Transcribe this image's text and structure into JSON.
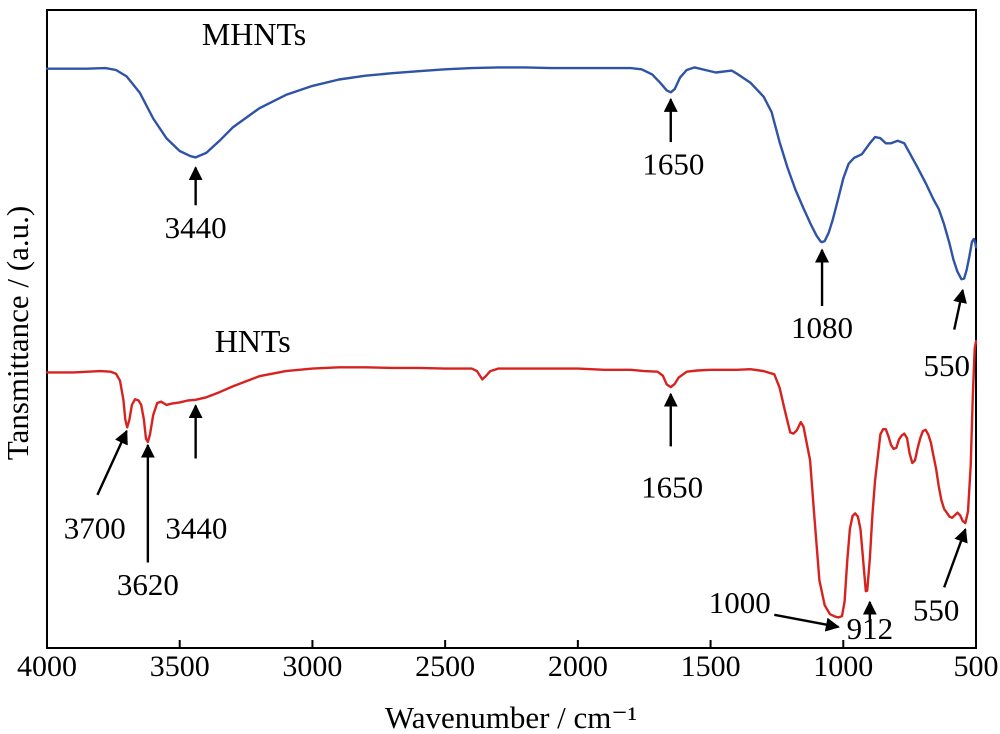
{
  "chart_data": {
    "type": "line",
    "xlabel": "Wavenumber / cm⁻¹",
    "ylabel": "Tansmittance / (a.u.)",
    "xlim": [
      4000,
      500
    ],
    "x_reversed": true,
    "xticks": [
      4000,
      3500,
      3000,
      2500,
      2000,
      1500,
      1000,
      500
    ],
    "ylim": [
      0,
      100
    ],
    "y_ticks_shown": false,
    "grid": false,
    "legend": "none",
    "series": [
      {
        "name": "MHNTs",
        "color": "#2f53a5",
        "points": [
          [
            4000,
            90.8
          ],
          [
            3850,
            90.8
          ],
          [
            3780,
            90.9
          ],
          [
            3740,
            90.6
          ],
          [
            3700,
            89.6
          ],
          [
            3650,
            87.0
          ],
          [
            3600,
            83.0
          ],
          [
            3550,
            79.9
          ],
          [
            3500,
            77.9
          ],
          [
            3460,
            77.1
          ],
          [
            3440,
            76.9
          ],
          [
            3400,
            77.6
          ],
          [
            3350,
            79.5
          ],
          [
            3300,
            81.6
          ],
          [
            3200,
            84.6
          ],
          [
            3100,
            86.7
          ],
          [
            3000,
            88.1
          ],
          [
            2900,
            89.1
          ],
          [
            2800,
            89.7
          ],
          [
            2700,
            90.1
          ],
          [
            2600,
            90.4
          ],
          [
            2500,
            90.7
          ],
          [
            2400,
            90.9
          ],
          [
            2300,
            91.0
          ],
          [
            2200,
            91.0
          ],
          [
            2100,
            90.9
          ],
          [
            2000,
            90.9
          ],
          [
            1900,
            90.9
          ],
          [
            1800,
            90.9
          ],
          [
            1760,
            90.7
          ],
          [
            1720,
            89.9
          ],
          [
            1690,
            88.6
          ],
          [
            1665,
            87.4
          ],
          [
            1650,
            87.1
          ],
          [
            1635,
            87.6
          ],
          [
            1615,
            89.4
          ],
          [
            1590,
            90.6
          ],
          [
            1560,
            91.0
          ],
          [
            1520,
            90.6
          ],
          [
            1480,
            90.2
          ],
          [
            1440,
            90.4
          ],
          [
            1420,
            90.5
          ],
          [
            1400,
            90.0
          ],
          [
            1350,
            88.6
          ],
          [
            1300,
            86.4
          ],
          [
            1270,
            84.0
          ],
          [
            1240,
            79.3
          ],
          [
            1210,
            75.3
          ],
          [
            1180,
            71.8
          ],
          [
            1150,
            68.9
          ],
          [
            1120,
            66.2
          ],
          [
            1100,
            64.6
          ],
          [
            1085,
            63.7
          ],
          [
            1080,
            63.6
          ],
          [
            1070,
            63.8
          ],
          [
            1055,
            65.1
          ],
          [
            1040,
            67.1
          ],
          [
            1020,
            70.3
          ],
          [
            1000,
            73.6
          ],
          [
            980,
            75.9
          ],
          [
            960,
            76.8
          ],
          [
            930,
            77.4
          ],
          [
            900,
            79.1
          ],
          [
            880,
            80.1
          ],
          [
            860,
            79.9
          ],
          [
            840,
            79.1
          ],
          [
            820,
            79.1
          ],
          [
            795,
            79.5
          ],
          [
            770,
            79.1
          ],
          [
            750,
            77.6
          ],
          [
            720,
            75.3
          ],
          [
            690,
            72.9
          ],
          [
            660,
            70.3
          ],
          [
            640,
            68.8
          ],
          [
            620,
            66.4
          ],
          [
            600,
            63.4
          ],
          [
            585,
            60.9
          ],
          [
            570,
            59.0
          ],
          [
            555,
            57.8
          ],
          [
            545,
            57.9
          ],
          [
            535,
            59.3
          ],
          [
            525,
            61.4
          ],
          [
            515,
            63.7
          ],
          [
            508,
            64.1
          ],
          [
            502,
            63.4
          ],
          [
            500,
            62.8
          ]
        ]
      },
      {
        "name": "HNTs",
        "color": "#d7231f",
        "points": [
          [
            4000,
            43.2
          ],
          [
            3900,
            43.2
          ],
          [
            3800,
            43.4
          ],
          [
            3760,
            43.3
          ],
          [
            3740,
            43.0
          ],
          [
            3725,
            41.9
          ],
          [
            3712,
            38.9
          ],
          [
            3705,
            35.8
          ],
          [
            3698,
            34.6
          ],
          [
            3690,
            35.7
          ],
          [
            3680,
            38.1
          ],
          [
            3668,
            39.0
          ],
          [
            3655,
            38.8
          ],
          [
            3645,
            38.1
          ],
          [
            3635,
            35.8
          ],
          [
            3627,
            32.8
          ],
          [
            3620,
            32.3
          ],
          [
            3612,
            33.5
          ],
          [
            3600,
            36.5
          ],
          [
            3585,
            38.4
          ],
          [
            3570,
            38.6
          ],
          [
            3550,
            38.1
          ],
          [
            3530,
            38.3
          ],
          [
            3500,
            38.5
          ],
          [
            3470,
            38.8
          ],
          [
            3440,
            38.9
          ],
          [
            3400,
            39.3
          ],
          [
            3350,
            40.1
          ],
          [
            3300,
            41.0
          ],
          [
            3250,
            41.8
          ],
          [
            3200,
            42.6
          ],
          [
            3100,
            43.4
          ],
          [
            3000,
            43.8
          ],
          [
            2900,
            44.0
          ],
          [
            2800,
            44.0
          ],
          [
            2700,
            43.9
          ],
          [
            2600,
            43.9
          ],
          [
            2500,
            43.8
          ],
          [
            2400,
            43.8
          ],
          [
            2380,
            43.4
          ],
          [
            2360,
            42.1
          ],
          [
            2345,
            42.7
          ],
          [
            2330,
            43.4
          ],
          [
            2300,
            43.8
          ],
          [
            2200,
            43.8
          ],
          [
            2100,
            43.8
          ],
          [
            2000,
            43.8
          ],
          [
            1900,
            43.6
          ],
          [
            1800,
            43.6
          ],
          [
            1750,
            43.4
          ],
          [
            1700,
            43.3
          ],
          [
            1680,
            42.7
          ],
          [
            1665,
            41.3
          ],
          [
            1650,
            40.9
          ],
          [
            1635,
            41.4
          ],
          [
            1620,
            42.4
          ],
          [
            1590,
            43.3
          ],
          [
            1550,
            43.5
          ],
          [
            1500,
            43.6
          ],
          [
            1450,
            43.6
          ],
          [
            1400,
            43.6
          ],
          [
            1350,
            43.7
          ],
          [
            1300,
            43.4
          ],
          [
            1260,
            42.9
          ],
          [
            1240,
            40.8
          ],
          [
            1220,
            37.2
          ],
          [
            1200,
            33.8
          ],
          [
            1188,
            33.6
          ],
          [
            1175,
            34.1
          ],
          [
            1160,
            35.4
          ],
          [
            1150,
            34.7
          ],
          [
            1140,
            32.6
          ],
          [
            1125,
            29.4
          ],
          [
            1110,
            21.1
          ],
          [
            1090,
            10.6
          ],
          [
            1070,
            6.7
          ],
          [
            1050,
            5.3
          ],
          [
            1030,
            4.9
          ],
          [
            1018,
            4.8
          ],
          [
            1005,
            5.0
          ],
          [
            995,
            7.3
          ],
          [
            985,
            13.8
          ],
          [
            975,
            18.7
          ],
          [
            965,
            20.7
          ],
          [
            955,
            21.1
          ],
          [
            945,
            20.6
          ],
          [
            935,
            18.6
          ],
          [
            925,
            13.7
          ],
          [
            915,
            8.9
          ],
          [
            910,
            9.0
          ],
          [
            900,
            13.9
          ],
          [
            890,
            21.1
          ],
          [
            880,
            26.3
          ],
          [
            870,
            30.0
          ],
          [
            860,
            33.5
          ],
          [
            850,
            34.3
          ],
          [
            840,
            34.3
          ],
          [
            830,
            33.2
          ],
          [
            820,
            31.8
          ],
          [
            810,
            31.2
          ],
          [
            800,
            31.4
          ],
          [
            790,
            32.7
          ],
          [
            780,
            33.3
          ],
          [
            770,
            33.6
          ],
          [
            760,
            32.9
          ],
          [
            750,
            30.5
          ],
          [
            740,
            29.0
          ],
          [
            730,
            29.4
          ],
          [
            720,
            31.3
          ],
          [
            710,
            32.9
          ],
          [
            700,
            34.0
          ],
          [
            690,
            34.2
          ],
          [
            680,
            33.5
          ],
          [
            670,
            32.2
          ],
          [
            660,
            30.1
          ],
          [
            650,
            28.0
          ],
          [
            640,
            25.3
          ],
          [
            630,
            23.1
          ],
          [
            620,
            21.8
          ],
          [
            610,
            21.2
          ],
          [
            600,
            20.6
          ],
          [
            590,
            20.4
          ],
          [
            580,
            20.8
          ],
          [
            570,
            21.2
          ],
          [
            560,
            20.8
          ],
          [
            550,
            19.9
          ],
          [
            540,
            19.6
          ],
          [
            530,
            21.4
          ],
          [
            520,
            28.6
          ],
          [
            512,
            39.5
          ],
          [
            505,
            46.9
          ],
          [
            500,
            48.1
          ]
        ]
      }
    ],
    "series_labels": [
      {
        "text": "MHNTs",
        "x": 3220,
        "y": 94.5
      },
      {
        "text": "HNTs",
        "x": 3225,
        "y": 46.4
      }
    ],
    "annotations": [
      {
        "label": "3440",
        "tip": [
          3440,
          75.3
        ],
        "tail": [
          3440,
          69.4
        ],
        "text_at": [
          3440,
          64.3
        ]
      },
      {
        "label": "1650",
        "tip": [
          1650,
          86.0
        ],
        "tail": [
          1650,
          79.3
        ],
        "text_at": [
          1640,
          74.2
        ]
      },
      {
        "label": "1080",
        "tip": [
          1080,
          62.4
        ],
        "tail": [
          1080,
          53.6
        ],
        "text_at": [
          1080,
          48.6
        ]
      },
      {
        "label": "550",
        "tip": [
          550,
          56.1
        ],
        "tail": [
          582,
          49.9
        ],
        "text_at": [
          610,
          42.6
        ]
      },
      {
        "label": "3700",
        "tip": [
          3700,
          34.0
        ],
        "tail": [
          3810,
          24.0
        ],
        "text_at": [
          3820,
          17.2
        ]
      },
      {
        "label": "3620",
        "tip": [
          3620,
          31.8
        ],
        "tail": [
          3620,
          13.4
        ],
        "text_at": [
          3620,
          8.3
        ]
      },
      {
        "label": "3440",
        "tip": [
          3440,
          38.0
        ],
        "tail": [
          3440,
          29.7
        ],
        "text_at": [
          3437,
          17.2
        ]
      },
      {
        "label": "1650",
        "tip": [
          1650,
          39.8
        ],
        "tail": [
          1650,
          31.6
        ],
        "text_at": [
          1645,
          23.6
        ]
      },
      {
        "label": "1000",
        "tip": [
          1018,
          3.3
        ],
        "tail": [
          1260,
          5.2
        ],
        "text_at": [
          1390,
          5.5
        ]
      },
      {
        "label": "912",
        "tip": [
          900,
          7.2
        ],
        "tail": [
          900,
          4.0
        ],
        "text_at": [
          900,
          1.4
        ]
      },
      {
        "label": "550",
        "tip": [
          540,
          18.6
        ],
        "tail": [
          620,
          9.5
        ],
        "text_at": [
          650,
          4.3
        ]
      }
    ]
  }
}
